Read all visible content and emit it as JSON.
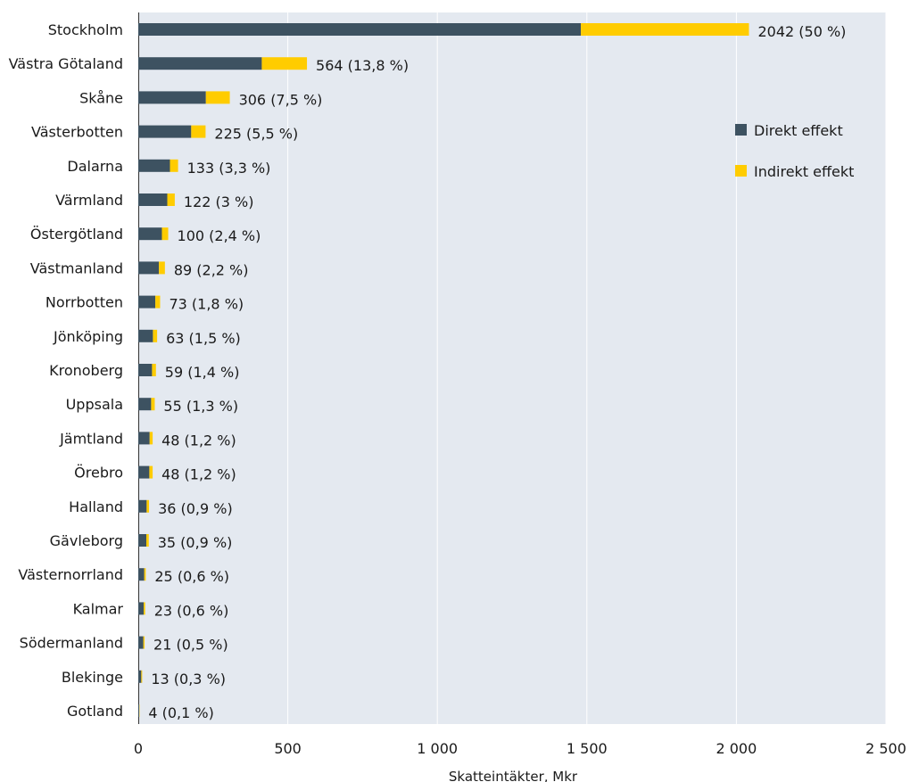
{
  "chart_data": {
    "type": "bar",
    "orientation": "horizontal",
    "stacked": true,
    "categories": [
      "Stockholm",
      "Västra Götaland",
      "Skåne",
      "Västerbotten",
      "Dalarna",
      "Värmland",
      "Östergötland",
      "Västmanland",
      "Norrbotten",
      "Jönköping",
      "Kronoberg",
      "Uppsala",
      "Jämtland",
      "Örebro",
      "Halland",
      "Gävleborg",
      "Västernorrland",
      "Kalmar",
      "Södermanland",
      "Blekinge",
      "Gotland"
    ],
    "series": [
      {
        "name": "Direkt effekt",
        "color": "#3d5261",
        "values": [
          1480,
          413,
          226,
          177,
          106,
          97,
          79,
          69,
          57,
          49,
          46,
          43,
          38,
          37,
          28,
          27,
          20,
          18,
          17,
          10,
          3
        ]
      },
      {
        "name": "Indirekt effekt",
        "color": "#ffcc00",
        "values": [
          562,
          151,
          80,
          48,
          27,
          25,
          21,
          20,
          16,
          14,
          13,
          12,
          10,
          11,
          8,
          8,
          5,
          5,
          4,
          3,
          1
        ]
      }
    ],
    "data_labels": [
      "2042 (50 %)",
      "564 (13,8 %)",
      "306 (7,5 %)",
      "225 (5,5 %)",
      "133 (3,3 %)",
      "122 (3 %)",
      "100 (2,4 %)",
      "89 (2,2 %)",
      "73 (1,8 %)",
      "63 (1,5 %)",
      "59 (1,4 %)",
      "55 (1,3 %)",
      "48 (1,2 %)",
      "48 (1,2 %)",
      "36 (0,9 %)",
      "35 (0,9 %)",
      "25 (0,6 %)",
      "23 (0,6 %)",
      "21 (0,5 %)",
      "13 (0,3 %)",
      "4 (0,1 %)"
    ],
    "xlabel": "Skatteintäkter, Mkr",
    "xlim": [
      0,
      2500
    ],
    "x_ticks": [
      0,
      500,
      1000,
      1500,
      2000,
      2500
    ],
    "x_tick_labels": [
      "0",
      "500",
      "1 000",
      "1 500",
      "2 000",
      "2 500"
    ],
    "grid": true,
    "legend": "right",
    "plot_background": "#e4e9f0",
    "grid_color": "#ffffff"
  }
}
